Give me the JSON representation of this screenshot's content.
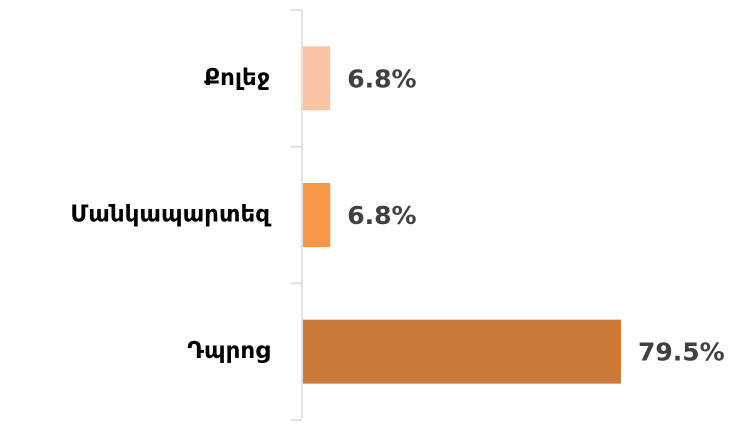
{
  "chart_data": {
    "type": "bar",
    "orientation": "horizontal",
    "categories": [
      "Քոլեջ",
      "Մանկապարտեզ",
      "Դպրոց"
    ],
    "values": [
      6.8,
      6.8,
      79.5
    ],
    "value_labels": [
      "6.8%",
      "6.8%",
      "79.5%"
    ],
    "colors": [
      "#f9c3a6",
      "#f79646",
      "#c97a3a"
    ],
    "xlim": [
      0,
      100
    ]
  }
}
